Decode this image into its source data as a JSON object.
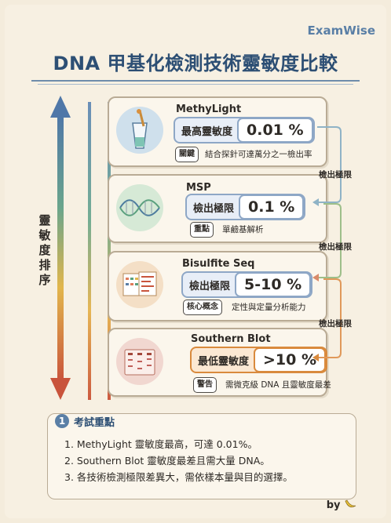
{
  "brand": "ExamWise",
  "title": "DNA 甲基化檢測技術靈敏度比較",
  "axis_label": "靈敏度排序",
  "cards": [
    {
      "name": "MethyLight",
      "metric_label": "最高靈敏度",
      "value": "0.01 %",
      "tag": "關鍵",
      "note": "結合探針可達萬分之一檢出率",
      "accent": "#7a9ac2"
    },
    {
      "name": "MSP",
      "metric_label": "檢出極限",
      "value": "0.1 %",
      "tag": "重點",
      "note": "單鹼基解析",
      "accent": "#7a9ac2"
    },
    {
      "name": "Bisulfite Seq",
      "metric_label": "檢出極限",
      "value": "5-10 %",
      "tag": "核心概念",
      "note": "定性與定量分析能力",
      "accent": "#7a9ac2"
    },
    {
      "name": "Southern Blot",
      "metric_label": "最低靈敏度",
      "value": ">10 %",
      "tag": "警告",
      "note": "需微克級 DNA 且靈敏度最差",
      "accent": "#d98a3d"
    }
  ],
  "connector_label": "檢出極限",
  "tips": {
    "number": "1",
    "title": "考試重點",
    "items": [
      "1. MethyLight 靈敏度最高，可達 0.01%。",
      "2. Southern Blot 靈敏度最差且需大量 DNA。",
      "3. 各技術檢測極限差異大，需依樣本量與目的選擇。"
    ]
  },
  "byline": "by"
}
